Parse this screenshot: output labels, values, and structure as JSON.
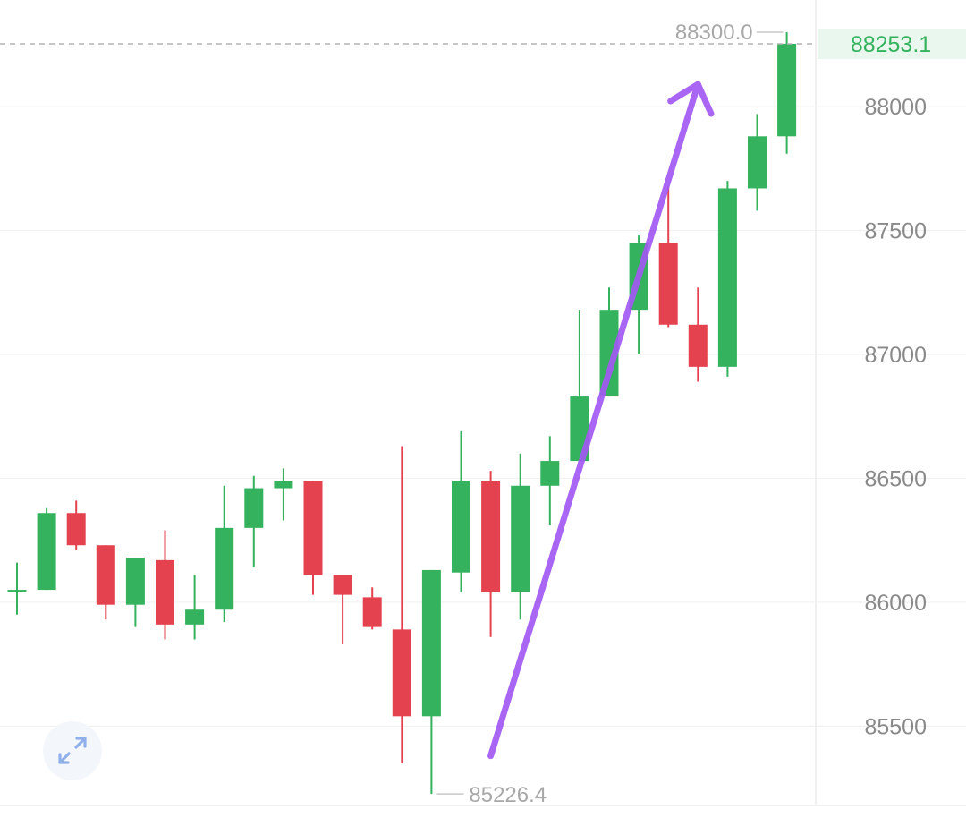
{
  "chart_data": {
    "type": "candlestick",
    "ylim": [
      85180,
      88430
    ],
    "yticks": [
      88000,
      87500,
      87000,
      86500,
      86000,
      85500
    ],
    "tick_labels": [
      "88000",
      "87500",
      "87000",
      "86500",
      "86000",
      "85500"
    ],
    "candles": [
      {
        "open": 86050,
        "high": 86160,
        "low": 85950,
        "close": 86050
      },
      {
        "open": 86050,
        "high": 86380,
        "low": 86050,
        "close": 86360
      },
      {
        "open": 86360,
        "high": 86410,
        "low": 86210,
        "close": 86230
      },
      {
        "open": 86230,
        "high": 86230,
        "low": 85930,
        "close": 85990
      },
      {
        "open": 85990,
        "high": 86180,
        "low": 85900,
        "close": 86180
      },
      {
        "open": 86170,
        "high": 86290,
        "low": 85850,
        "close": 85910
      },
      {
        "open": 85910,
        "high": 86110,
        "low": 85850,
        "close": 85970
      },
      {
        "open": 85970,
        "high": 86470,
        "low": 85920,
        "close": 86300
      },
      {
        "open": 86300,
        "high": 86510,
        "low": 86140,
        "close": 86460
      },
      {
        "open": 86460,
        "high": 86540,
        "low": 86330,
        "close": 86490
      },
      {
        "open": 86490,
        "high": 86490,
        "low": 86030,
        "close": 86110
      },
      {
        "open": 86110,
        "high": 86110,
        "low": 85830,
        "close": 86030
      },
      {
        "open": 86020,
        "high": 86060,
        "low": 85890,
        "close": 85900
      },
      {
        "open": 85890,
        "high": 86630,
        "low": 85350,
        "close": 85540
      },
      {
        "open": 85540,
        "high": 86130,
        "low": 85226.4,
        "close": 86130
      },
      {
        "open": 86120,
        "high": 86690,
        "low": 86040,
        "close": 86490
      },
      {
        "open": 86490,
        "high": 86530,
        "low": 85860,
        "close": 86040
      },
      {
        "open": 86040,
        "high": 86600,
        "low": 85930,
        "close": 86470
      },
      {
        "open": 86470,
        "high": 86670,
        "low": 86310,
        "close": 86570
      },
      {
        "open": 86570,
        "high": 87180,
        "low": 86570,
        "close": 86830
      },
      {
        "open": 86830,
        "high": 87270,
        "low": 86830,
        "close": 87180
      },
      {
        "open": 87180,
        "high": 87480,
        "low": 87000,
        "close": 87450
      },
      {
        "open": 87450,
        "high": 87680,
        "low": 87110,
        "close": 87120
      },
      {
        "open": 87120,
        "high": 87270,
        "low": 86890,
        "close": 86950
      },
      {
        "open": 86950,
        "high": 87700,
        "low": 86910,
        "close": 87670
      },
      {
        "open": 87670,
        "high": 87970,
        "low": 87580,
        "close": 87880
      },
      {
        "open": 87880,
        "high": 88300,
        "low": 87810,
        "close": 88253.1
      }
    ],
    "high_label": "88300.0",
    "low_label": "85226.4",
    "last_price": 88253.1,
    "last_price_label": "88253.1",
    "colors": {
      "up": "#34b25d",
      "down": "#e5424f",
      "arrow": "#a259f2",
      "grid": "#f1f1f1",
      "price_tag_bg": "#eaf7ee",
      "price_tag_text": "#34b25d"
    },
    "annotation": {
      "type": "arrow",
      "from_candle": 16,
      "from_value": 85380,
      "to_candle": 23,
      "to_value": 88090
    }
  },
  "controls": {
    "expand_icon": "expand-diagonal-icon"
  }
}
